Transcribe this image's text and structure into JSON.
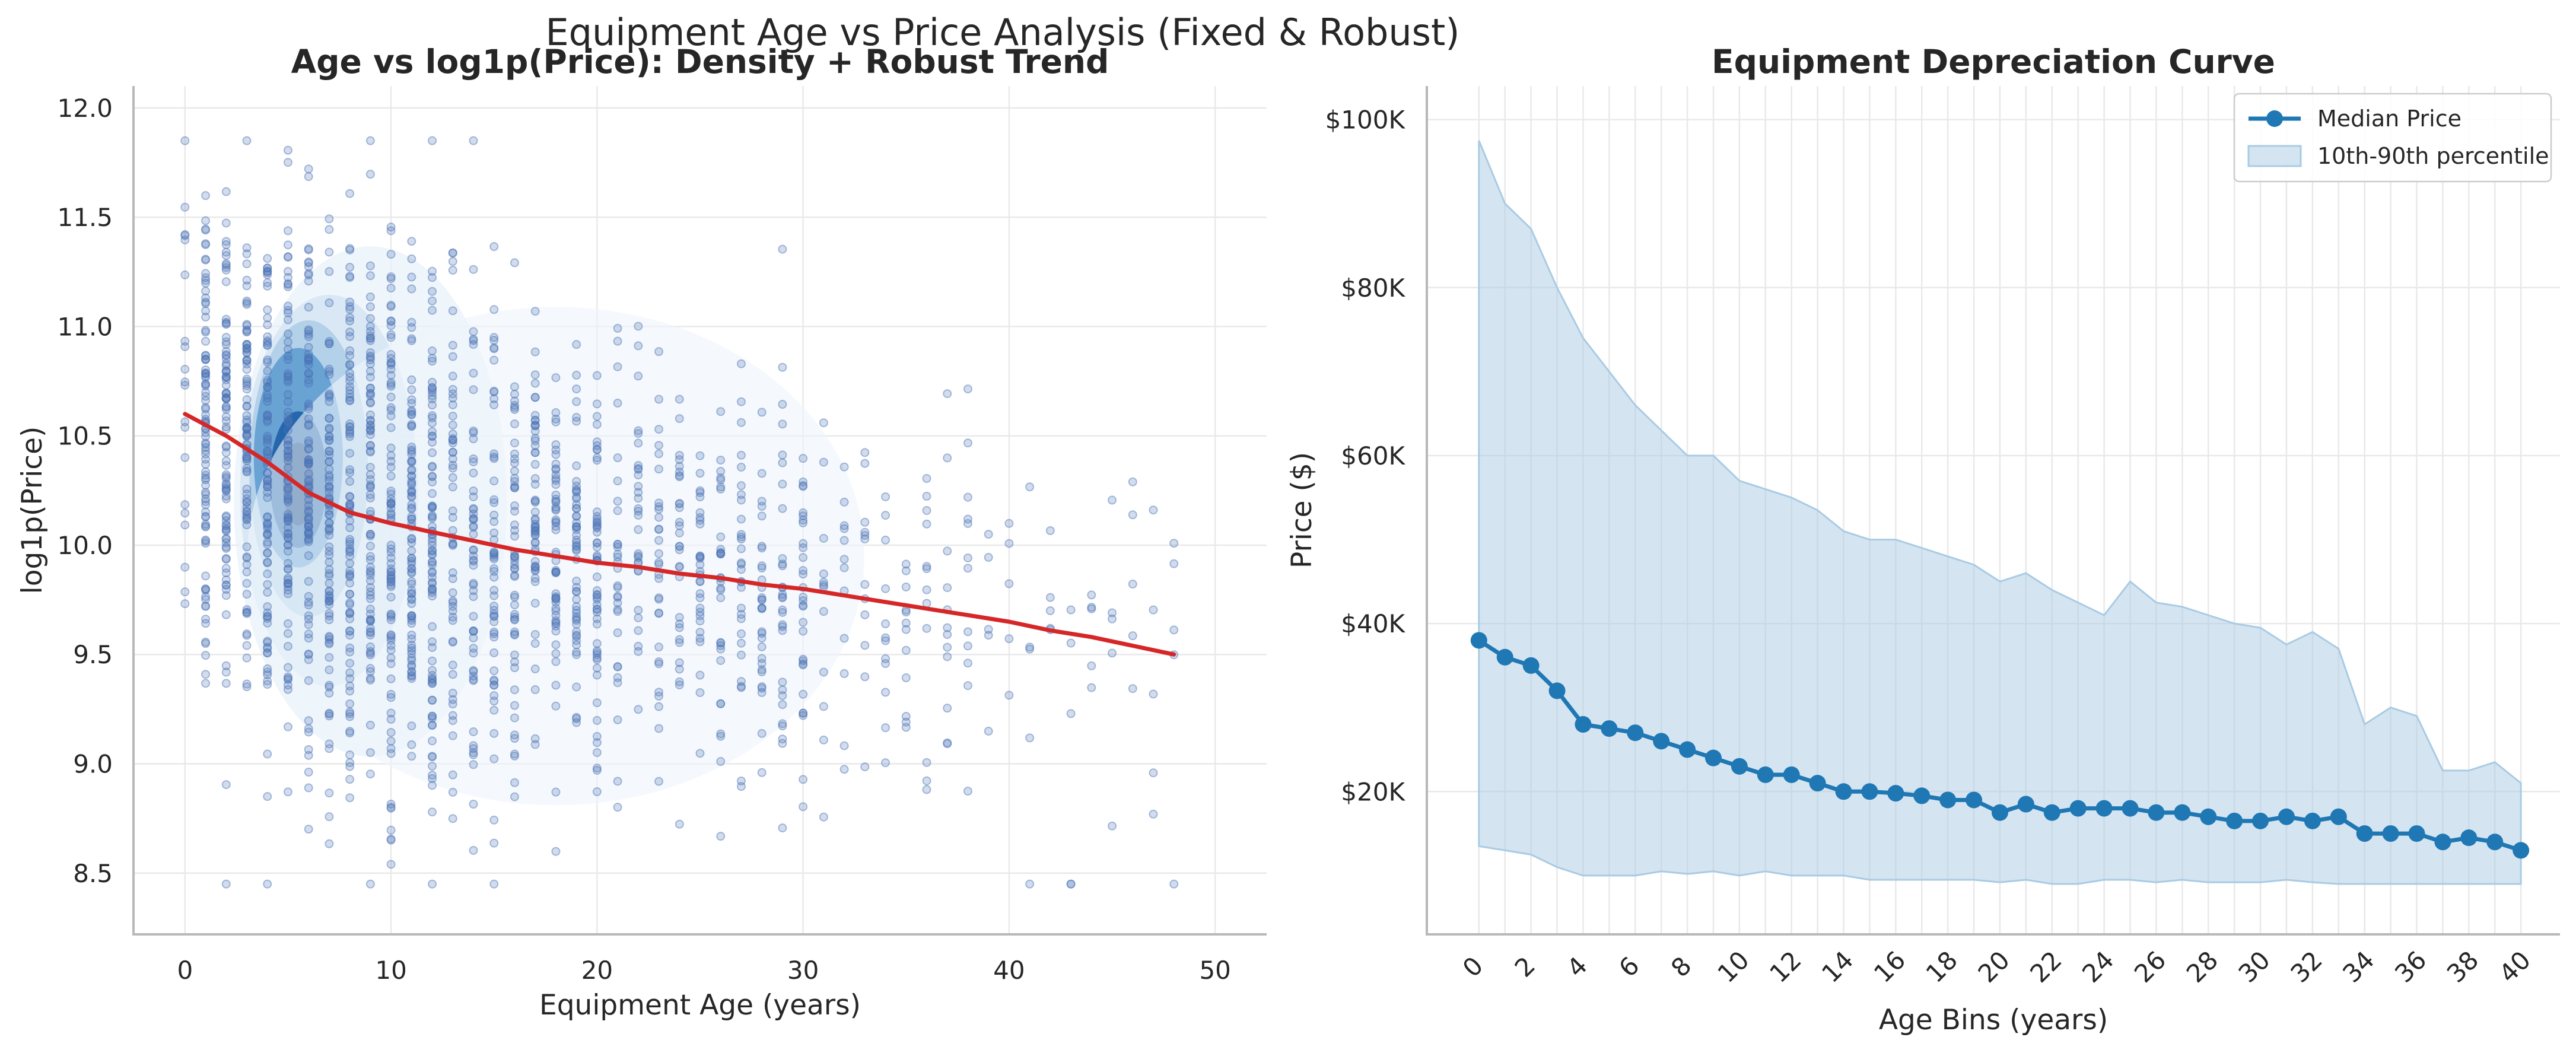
{
  "figure": {
    "suptitle": "Equipment Age vs Price Analysis (Fixed & Robust)"
  },
  "colors": {
    "scatter": "#4a72b5",
    "trend": "#d62728",
    "median": "#1f77b4",
    "band": "#a9cbe4"
  },
  "chart_data": [
    {
      "type": "scatter",
      "title": "Age vs log1p(Price): Density + Robust Trend",
      "xlabel": "Equipment Age (years)",
      "ylabel": "log1p(Price)",
      "xlim": [
        -2.5,
        52.5
      ],
      "ylim": [
        8.22,
        12.1
      ],
      "xticks": [
        0,
        10,
        20,
        30,
        40,
        50
      ],
      "yticks": [
        8.5,
        9.0,
        9.5,
        10.0,
        10.5,
        11.0,
        11.5,
        12.0
      ],
      "grid": true,
      "layers": [
        "kde density",
        "scatter points",
        "robust trend line"
      ],
      "trend": {
        "x": [
          0,
          2,
          4,
          6,
          8,
          10,
          12,
          14,
          16,
          18,
          20,
          22,
          24,
          26,
          28,
          30,
          32,
          34,
          36,
          38,
          40,
          42,
          44,
          46,
          48
        ],
        "y": [
          10.6,
          10.5,
          10.38,
          10.24,
          10.15,
          10.1,
          10.06,
          10.02,
          9.98,
          9.95,
          9.92,
          9.9,
          9.87,
          9.85,
          9.82,
          9.8,
          9.77,
          9.74,
          9.71,
          9.68,
          9.65,
          9.61,
          9.58,
          9.54,
          9.5
        ]
      },
      "density_core": {
        "center": [
          5.5,
          10.3
        ]
      }
    },
    {
      "type": "line",
      "title": "Equipment Depreciation Curve",
      "xlabel": "Age Bins (years)",
      "ylabel": "Price ($)",
      "xlim": [
        -2,
        41.5
      ],
      "ylim": [
        3000,
        104000
      ],
      "xticks": [
        0,
        2,
        4,
        6,
        8,
        10,
        12,
        14,
        16,
        18,
        20,
        22,
        24,
        26,
        28,
        30,
        32,
        34,
        36,
        38,
        40
      ],
      "yticks": [
        20000,
        40000,
        60000,
        80000,
        100000
      ],
      "ytick_labels": [
        "$20K",
        "$40K",
        "$60K",
        "$80K",
        "$100K"
      ],
      "grid": true,
      "legend": {
        "placement": "top-right",
        "entries": [
          "Median Price",
          "10th-90th percentile"
        ]
      },
      "x": [
        0,
        1,
        2,
        3,
        4,
        5,
        6,
        7,
        8,
        9,
        10,
        11,
        12,
        13,
        14,
        15,
        16,
        17,
        18,
        19,
        20,
        21,
        22,
        23,
        24,
        25,
        26,
        27,
        28,
        29,
        30,
        31,
        32,
        33,
        34,
        35,
        36,
        37,
        38,
        39,
        40
      ],
      "series": [
        {
          "name": "Median Price",
          "values": [
            38000,
            36000,
            35000,
            32000,
            28000,
            27500,
            27000,
            26000,
            25000,
            24000,
            23000,
            22000,
            22000,
            21000,
            20000,
            20000,
            19800,
            19500,
            19000,
            19000,
            17500,
            18500,
            17500,
            18000,
            18000,
            18000,
            17500,
            17500,
            17000,
            16500,
            16500,
            17000,
            16500,
            17000,
            15000,
            15000,
            15000,
            14000,
            14500,
            14000,
            13000
          ]
        },
        {
          "name": "10th-90th percentile",
          "lower": [
            13500,
            13000,
            12500,
            11000,
            10000,
            10000,
            10000,
            10500,
            10200,
            10500,
            10000,
            10500,
            10000,
            10000,
            10000,
            9500,
            9500,
            9500,
            9500,
            9500,
            9200,
            9500,
            9000,
            9000,
            9500,
            9500,
            9200,
            9500,
            9200,
            9200,
            9200,
            9500,
            9200,
            9000,
            9000,
            9000,
            9000,
            9000,
            9000,
            9000,
            9000
          ],
          "upper": [
            97500,
            90000,
            87000,
            80000,
            74000,
            70000,
            66000,
            63000,
            60000,
            60000,
            57000,
            56000,
            55000,
            53500,
            51000,
            50000,
            50000,
            49000,
            48000,
            47000,
            45000,
            46000,
            44000,
            42500,
            41000,
            45000,
            42500,
            42000,
            41000,
            40000,
            39500,
            37500,
            39000,
            37000,
            28000,
            30000,
            29000,
            22500,
            22500,
            23500,
            21000
          ]
        }
      ]
    }
  ]
}
